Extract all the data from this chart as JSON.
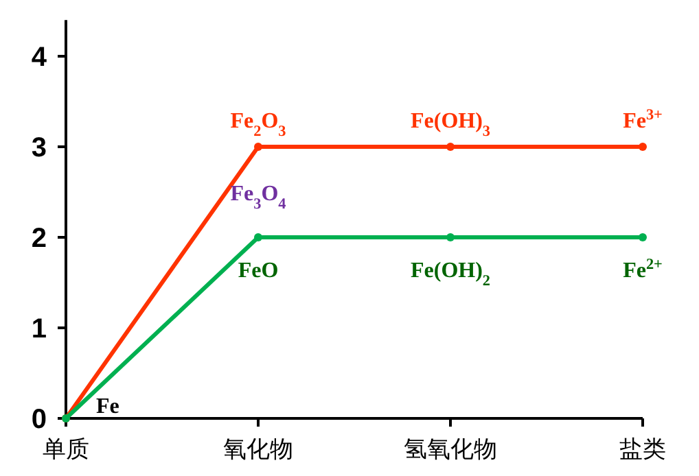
{
  "chart_data": {
    "type": "line",
    "categories": [
      "单质",
      "氧化物",
      "氢氧化物",
      "盐类"
    ],
    "series": [
      {
        "color": "#ff3300",
        "values": [
          0,
          3,
          3,
          3
        ]
      },
      {
        "color": "#00b050",
        "values": [
          0,
          2,
          2,
          2
        ]
      }
    ],
    "ylim": [
      0,
      4.4
    ],
    "yticks": [
      0,
      1,
      2,
      3,
      4
    ],
    "grid": false,
    "marker": "circle",
    "line_style": "solid",
    "annotations": [
      {
        "text": "Fe",
        "x": "单质",
        "y": 0
      },
      {
        "text": "Fe$_{2}$O$_{3}$",
        "x": "氧化物",
        "y": 3
      },
      {
        "text": "Fe(OH)$_{3}$",
        "x": "氢氧化物",
        "y": 3
      },
      {
        "text": "Fe$^{3+}$",
        "x": "盐类",
        "y": 3
      },
      "Fe$_{3}$O$_{4}$",
      {
        "text": "FeO",
        "x": "氧化物",
        "y": 2
      },
      {
        "text": "Fe(OH)$_{2}$",
        "x": "氢氧化物",
        "y": 2
      },
      {
        "text": "Fe$^{2+}$",
        "x": "盐类",
        "y": 2
      }
    ]
  }
}
